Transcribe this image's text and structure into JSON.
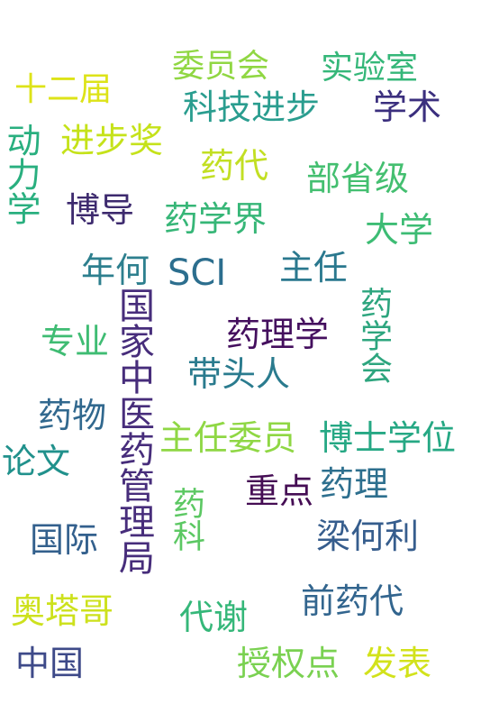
{
  "words": [
    {
      "text": "委员会",
      "color": "#90d743"
    },
    {
      "text": "实验室",
      "color": "#35b779"
    },
    {
      "text": "十二届",
      "color": "#dde318"
    },
    {
      "text": "科技进步",
      "color": "#2a9d8f"
    },
    {
      "text": "学术",
      "color": "#3b2f7e"
    },
    {
      "text": "动力学",
      "color": "#29af7f"
    },
    {
      "text": "进步奖",
      "color": "#c5e21a"
    },
    {
      "text": "药代",
      "color": "#c2df23"
    },
    {
      "text": "部省级",
      "color": "#44bf70"
    },
    {
      "text": "博导",
      "color": "#3d2a6e"
    },
    {
      "text": "药学界",
      "color": "#36b677"
    },
    {
      "text": "大学",
      "color": "#3dbc74"
    },
    {
      "text": "年何",
      "color": "#2d7f8e"
    },
    {
      "text": "SCI",
      "color": "#2c6e8e"
    },
    {
      "text": "主任",
      "color": "#2a788e"
    },
    {
      "text": "药学会",
      "color": "#2da57e"
    },
    {
      "text": "国家中医药管理局",
      "color": "#472d7b"
    },
    {
      "text": "专业",
      "color": "#3fbc73"
    },
    {
      "text": "药理学",
      "color": "#440f5e"
    },
    {
      "text": "带头人",
      "color": "#2a7b8e"
    },
    {
      "text": "药物",
      "color": "#31688e"
    },
    {
      "text": "主任委员",
      "color": "#8fd744"
    },
    {
      "text": "博士学位",
      "color": "#26a884"
    },
    {
      "text": "论文",
      "color": "#21918c"
    },
    {
      "text": "重点",
      "color": "#450d54"
    },
    {
      "text": "药理",
      "color": "#2d6f8e"
    },
    {
      "text": "药科",
      "color": "#5cc863"
    },
    {
      "text": "国际",
      "color": "#33608d"
    },
    {
      "text": "梁何利",
      "color": "#365d8d"
    },
    {
      "text": "奥塔哥",
      "color": "#cde11d"
    },
    {
      "text": "前药代",
      "color": "#32658e"
    },
    {
      "text": "代谢",
      "color": "#35b779"
    },
    {
      "text": "中国",
      "color": "#3e4a89"
    },
    {
      "text": "授权点",
      "color": "#7ad151"
    },
    {
      "text": "发表",
      "color": "#d2e21b"
    }
  ]
}
